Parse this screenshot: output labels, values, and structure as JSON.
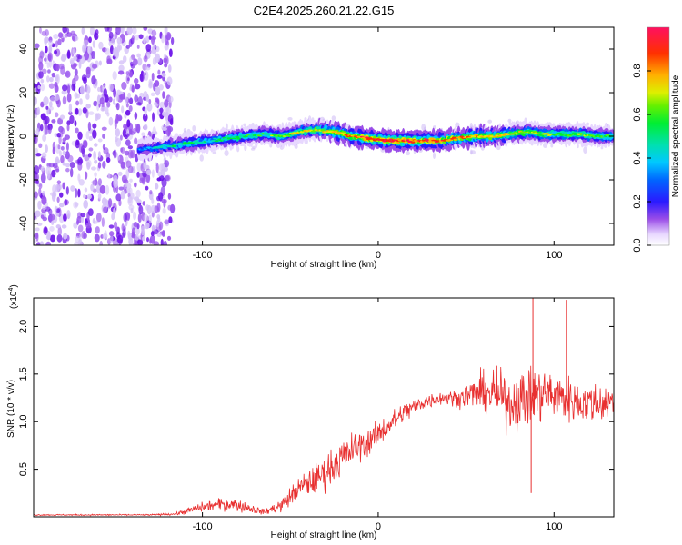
{
  "chart_data": [
    {
      "type": "heatmap",
      "title": "C2E4.2025.260.21.22.G15",
      "xlabel": "Height of straight line (km)",
      "ylabel": "Frequency (Hz)",
      "xlim": [
        -196,
        134
      ],
      "ylim": [
        -50,
        50
      ],
      "xticks": [
        -100,
        0,
        100
      ],
      "xtick_labels": [
        "-100",
        "0",
        "100"
      ],
      "yticks": [
        -40,
        -20,
        0,
        20,
        40
      ],
      "ytick_labels": [
        "-40",
        "-20",
        "0",
        "20",
        "40"
      ],
      "colorbar": {
        "label": "Normalized spectral amplitude",
        "range": [
          0,
          1
        ],
        "ticks": [
          0,
          0.2,
          0.4,
          0.6,
          0.8
        ],
        "tick_labels": [
          "0.0",
          "0.2",
          "0.4",
          "0.6",
          "0.8"
        ]
      },
      "ridge": {
        "x": [
          -135,
          -125,
          -115,
          -105,
          -95,
          -85,
          -75,
          -65,
          -55,
          -45,
          -35,
          -25,
          -15,
          -5,
          5,
          15,
          25,
          35,
          45,
          55,
          65,
          75,
          85,
          95,
          105,
          115,
          125,
          134
        ],
        "frequency": [
          -6,
          -5,
          -4,
          -3,
          -2,
          -1,
          0,
          1,
          0,
          2,
          3,
          2,
          0,
          -1,
          -2,
          -2,
          -2,
          -2,
          -1,
          0,
          0,
          1,
          2,
          1,
          1,
          1,
          0,
          0
        ],
        "amplitude": [
          0.35,
          0.45,
          0.5,
          0.55,
          0.5,
          0.55,
          0.6,
          0.6,
          0.65,
          0.7,
          0.75,
          0.8,
          0.85,
          0.95,
          1.0,
          1.0,
          0.95,
          0.9,
          0.85,
          0.8,
          0.8,
          0.75,
          0.7,
          0.7,
          0.65,
          0.65,
          0.6,
          0.6
        ]
      },
      "noise_region": {
        "x_range": [
          -196,
          -117
        ],
        "frequency_range": [
          -50,
          50
        ]
      }
    },
    {
      "type": "line",
      "xlabel": "Height of straight line (km)",
      "ylabel": "SNR (10 * v/v)",
      "y_multiplier": "(x10",
      "y_multiplier_exp": "4",
      "xlim": [
        -196,
        134
      ],
      "ylim": [
        0,
        2.3
      ],
      "xticks": [
        -100,
        0,
        100
      ],
      "xtick_labels": [
        "-100",
        "0",
        "100"
      ],
      "yticks": [
        0.5,
        1.0,
        1.5,
        2.0
      ],
      "ytick_labels": [
        "0.5",
        "1.0",
        "1.5",
        "2.0"
      ],
      "color": "#e83030",
      "series": [
        {
          "name": "SNR",
          "x": [
            -196,
            -160,
            -130,
            -115,
            -105,
            -95,
            -85,
            -75,
            -65,
            -55,
            -45,
            -35,
            -25,
            -15,
            -5,
            5,
            15,
            25,
            35,
            45,
            55,
            65,
            75,
            85,
            95,
            105,
            115,
            125,
            134
          ],
          "y": [
            0.02,
            0.02,
            0.02,
            0.03,
            0.08,
            0.12,
            0.14,
            0.1,
            0.05,
            0.12,
            0.3,
            0.4,
            0.55,
            0.7,
            0.8,
            0.95,
            1.1,
            1.2,
            1.25,
            1.25,
            1.3,
            1.3,
            1.2,
            1.25,
            1.3,
            1.25,
            1.2,
            1.2,
            1.2
          ],
          "spread": [
            0.01,
            0.01,
            0.01,
            0.02,
            0.06,
            0.08,
            0.1,
            0.08,
            0.04,
            0.1,
            0.18,
            0.22,
            0.28,
            0.25,
            0.2,
            0.18,
            0.15,
            0.12,
            0.1,
            0.12,
            0.25,
            0.35,
            0.4,
            0.45,
            0.4,
            0.35,
            0.3,
            0.3,
            0.3
          ]
        }
      ],
      "peaks": [
        {
          "x": 88,
          "y": 2.3
        },
        {
          "x": 107,
          "y": 2.28
        },
        {
          "x": 87,
          "y": 0.25
        }
      ]
    }
  ],
  "colors": {
    "line": "#e83030",
    "noise_dot": "#7a2be0",
    "halo": "#c9b3f5"
  }
}
